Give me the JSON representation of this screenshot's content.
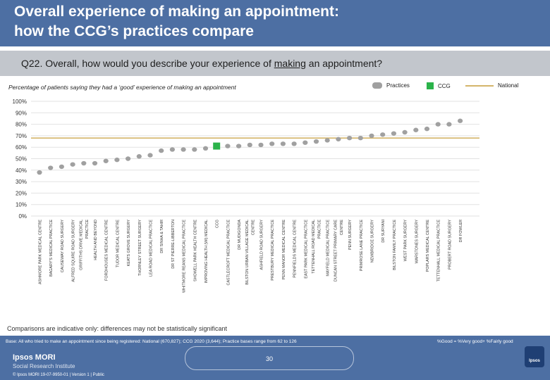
{
  "header": {
    "title_line1": "Overall experience of making an appointment:",
    "title_line2": "how the CCG’s practices compare"
  },
  "question": {
    "prefix": "Q22. Overall, how would you describe your experience of ",
    "underlined": "making",
    "suffix": " an appointment?"
  },
  "subtitle": "Percentage of patients saying they had a ‘good’ experience of making an appointment",
  "legend": {
    "practices": "Practices",
    "ccg": "CCG",
    "national": "National"
  },
  "colors": {
    "header_bg": "#4d6fa3",
    "practice_marker": "#a0a0a0",
    "ccg_marker": "#2bb34a",
    "national_line": "#d4b56a"
  },
  "chart_data": {
    "type": "scatter",
    "title": "Percentage of patients saying they had a ‘good’ experience of making an appointment",
    "ylim": [
      0,
      100
    ],
    "yticks": [
      0,
      10,
      20,
      30,
      40,
      50,
      60,
      70,
      80,
      90,
      100
    ],
    "ytick_labels": [
      "0%",
      "10%",
      "20%",
      "30%",
      "40%",
      "50%",
      "60%",
      "70%",
      "80%",
      "90%",
      "100%"
    ],
    "national": 68,
    "ccg_label": "CCG",
    "ccg_value": 61,
    "categories": [
      "ASHMORE PARK MEDICAL CENTRE",
      "BAGARY'S MEDICAL PRACTICE",
      "CAUSEWAY ROAD SURGERY",
      "ALFRED SQUIRE ROAD SURGERY",
      "GRIFFITHS DRIVE MEDICAL PRACTICE",
      "HEALTH AND BEYOND",
      "FORDHOUSES MEDICAL CENTRE",
      "TUDOR MEDICAL CENTRE",
      "KEATS GROVE SURGERY",
      "THORNLEY STREET SURGERY",
      "LEA ROAD MEDICAL PRACTICE",
      "DR SINHA & TAHIR",
      "DR ST PIERRE-LIBBERTON",
      "WHITMORE REANS MEDICAL PRACTICE",
      "SHOWELL PARK HEALTH CENTRE",
      "IMPROVING HEALTH (WI) MEDICAL",
      "CCG",
      "CASTLECROFT MEDICAL PRACTICE",
      "DR MUDIGONDA",
      "BILSTON URBAN VILLAGE MEDICAL CENTRE",
      "ASHFIELD ROAD SURGERY",
      "PRESTBURY MEDICAL PRACTICE",
      "PENN MANOR MEDICAL CENTRE",
      "PENNFIELDS MEDICAL CENTRE",
      "EAST PARK MEDICAL PRACTICE",
      "TETTENHALL ROAD MEDICAL PRACTICE",
      "MAYFIELD MEDICAL PRACTICE",
      "DUNCAN STREET PRIMARY CARE CENTRE",
      "PENN SURGERY",
      "PRIMROSE LANE PRACTICE",
      "NEWBRIDGE SURGERY",
      "DR SURYANI",
      "BILSTON FAMILY PRACTICE",
      "WEST PARK SURGERY",
      "WARSTONES SURGERY",
      "POPLARS MEDICAL CENTRE",
      "TETTENHALL MEDICAL PRACTICE",
      "PROBERT ROAD SURGERY",
      "DR FOWLER"
    ],
    "values": [
      38,
      42,
      43,
      45,
      46,
      46,
      48,
      49,
      50,
      52,
      53,
      57,
      58,
      58,
      58,
      59,
      61,
      61,
      61,
      62,
      62,
      63,
      63,
      63,
      64,
      65,
      66,
      67,
      68,
      68,
      70,
      71,
      72,
      73,
      75,
      76,
      80,
      80,
      83
    ]
  },
  "footnote": "Comparisons are indicative only: differences may not be statistically significant",
  "footer": {
    "base": "Base: All who tried to make an appointment since being registered: National (670,827); CCG 2020 (3,644); Practice bases range from 62 to 126",
    "good_def": "%Good = %Very good+ %Fairly good",
    "brand": "Ipsos MORI",
    "brand_sub": "Social Research Institute",
    "copyright": "© Ipsos MORI     19-07-9950-01 | Version 1 | Public",
    "page_number": "30",
    "ipsos_mark": "Ipsos"
  }
}
